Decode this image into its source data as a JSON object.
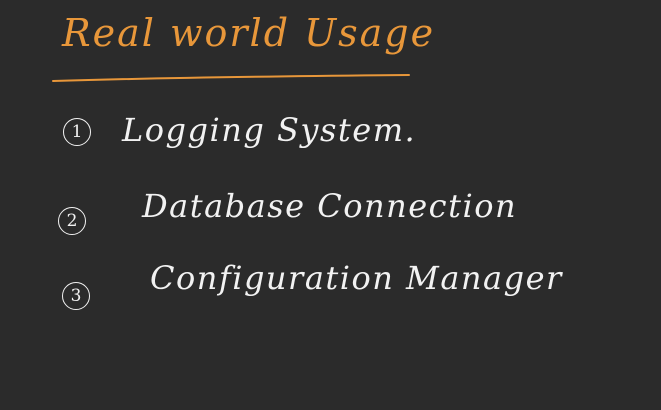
{
  "heading": {
    "text": "Real world Usage",
    "color": "#e8973a"
  },
  "items": [
    {
      "number": "1",
      "label": "Logging System."
    },
    {
      "number": "2",
      "label": "Database Connection"
    },
    {
      "number": "3",
      "label": "Configuration Manager"
    }
  ],
  "colors": {
    "background": "#2b2b2b",
    "ink": "#f2f2f2"
  }
}
